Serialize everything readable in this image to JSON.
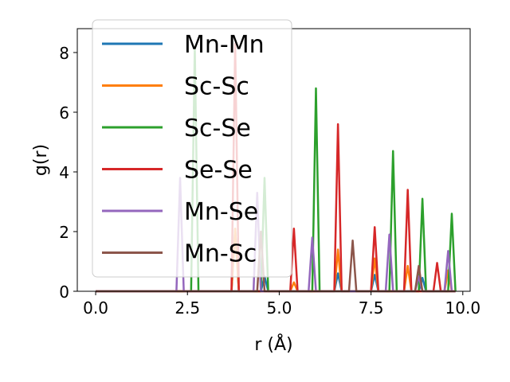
{
  "chart_data": {
    "type": "line",
    "xlabel": "r (Å)",
    "ylabel": "g(r)",
    "xlim": [
      -0.5,
      10.2
    ],
    "ylim": [
      0,
      8.8
    ],
    "xticks": [
      0.0,
      2.5,
      5.0,
      7.5,
      10.0
    ],
    "xtick_labels": [
      "0.0",
      "2.5",
      "5.0",
      "7.5",
      "10.0"
    ],
    "yticks": [
      0,
      2,
      4,
      6,
      8
    ],
    "ytick_labels": [
      "0",
      "2",
      "4",
      "6",
      "8"
    ],
    "grid": false,
    "legend_position": "upper-left",
    "series": [
      {
        "name": "Mn-Mn",
        "color": "#1f77b4",
        "peaks": [
          [
            3.8,
            2.1
          ],
          [
            4.6,
            0.5
          ],
          [
            6.6,
            0.6
          ],
          [
            7.6,
            0.55
          ],
          [
            8.9,
            0.45
          ]
        ]
      },
      {
        "name": "Sc-Sc",
        "color": "#ff7f0e",
        "peaks": [
          [
            3.8,
            2.1
          ],
          [
            5.4,
            0.3
          ],
          [
            6.6,
            1.4
          ],
          [
            7.6,
            1.1
          ],
          [
            8.5,
            0.85
          ],
          [
            9.6,
            0.7
          ]
        ]
      },
      {
        "name": "Sc-Se",
        "color": "#2ca02c",
        "peaks": [
          [
            2.7,
            8.2
          ],
          [
            4.6,
            3.8
          ],
          [
            6.0,
            6.8
          ],
          [
            8.1,
            4.7
          ],
          [
            8.9,
            3.1
          ],
          [
            9.7,
            2.6
          ]
        ]
      },
      {
        "name": "Se-Se",
        "color": "#d62728",
        "peaks": [
          [
            3.8,
            8.3
          ],
          [
            5.4,
            2.1
          ],
          [
            6.6,
            5.6
          ],
          [
            7.6,
            2.15
          ],
          [
            8.5,
            3.4
          ],
          [
            9.3,
            0.95
          ]
        ]
      },
      {
        "name": "Mn-Se",
        "color": "#9467bd",
        "peaks": [
          [
            2.3,
            3.8
          ],
          [
            4.4,
            3.3
          ],
          [
            5.9,
            1.8
          ],
          [
            8.0,
            1.9
          ],
          [
            8.8,
            0.5
          ],
          [
            9.6,
            1.35
          ]
        ]
      },
      {
        "name": "Mn-Sc",
        "color": "#8c564b",
        "peaks": [
          [
            4.5,
            2.0
          ],
          [
            7.0,
            1.7
          ],
          [
            8.8,
            0.85
          ]
        ]
      }
    ]
  }
}
